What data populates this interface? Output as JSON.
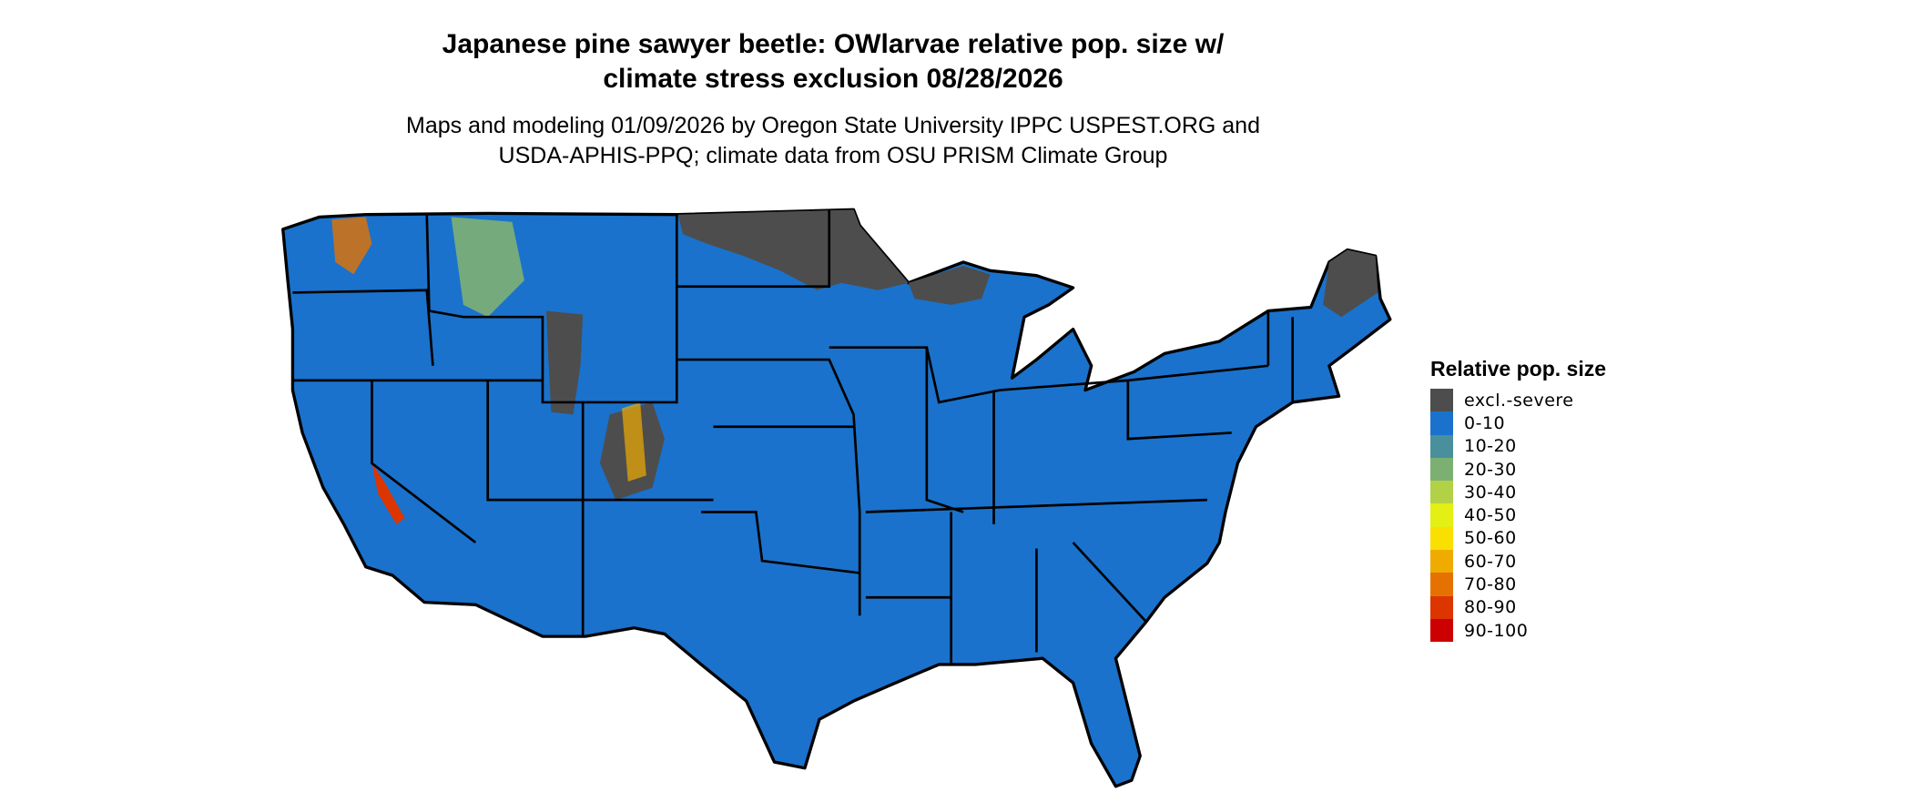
{
  "title": {
    "line1": "Japanese pine sawyer beetle: OWlarvae relative pop. size w/",
    "line2": "climate stress exclusion 08/28/2026"
  },
  "subtitle": {
    "line1": "Maps and modeling 01/09/2026 by Oregon State University IPPC USPEST.ORG and",
    "line2": "USDA-APHIS-PPQ; climate data from OSU PRISM Climate Group"
  },
  "map": {
    "region": "Contiguous United States",
    "dominant_class": "0-10",
    "excluded_areas": [
      "North Dakota / Minnesota north",
      "Wyoming west",
      "Colorado Rockies",
      "Northern Maine",
      "Upper Michigan"
    ],
    "high_value_areas": [
      "Northern Idaho / NE Washington",
      "Southern Sierra Nevada, California",
      "Colorado Rockies"
    ]
  },
  "legend": {
    "title": "Relative pop. size",
    "items": [
      {
        "label": "excl.-severe",
        "color": "#4d4d4d"
      },
      {
        "label": "0-10",
        "color": "#1a72cc"
      },
      {
        "label": "10-20",
        "color": "#4a8f9c"
      },
      {
        "label": "20-30",
        "color": "#7cb073"
      },
      {
        "label": "30-40",
        "color": "#b3d147"
      },
      {
        "label": "40-50",
        "color": "#e4ef14"
      },
      {
        "label": "50-60",
        "color": "#f9e000"
      },
      {
        "label": "60-70",
        "color": "#efab00"
      },
      {
        "label": "70-80",
        "color": "#e57200"
      },
      {
        "label": "80-90",
        "color": "#dc3500"
      },
      {
        "label": "90-100",
        "color": "#cc0000"
      }
    ]
  }
}
